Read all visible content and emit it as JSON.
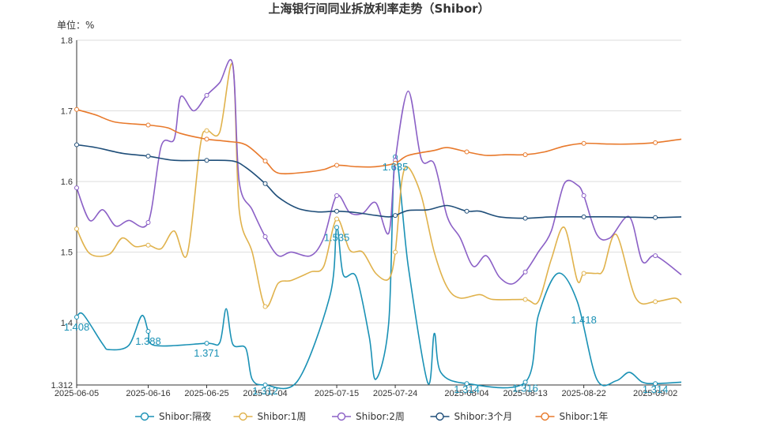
{
  "chart_data": {
    "type": "line",
    "title": "上海银行间同业拆放利率走势（Shibor）",
    "unit_label": "单位：%",
    "xlabel": "",
    "ylabel": "",
    "ylim": [
      1.312,
      1.8
    ],
    "y_ticks": [
      "1.312",
      "1.4",
      "1.5",
      "1.6",
      "1.7",
      "1.8"
    ],
    "x_range": [
      "2025-06-05",
      "2025-09-06"
    ],
    "x_ticks": [
      "2025-06-05",
      "2025-06-16",
      "2025-06-25",
      "2025-07-04",
      "2025-07-15",
      "2025-07-24",
      "2025-08-04",
      "2025-08-13",
      "2025-08-22",
      "2025-09-02"
    ],
    "grid": true,
    "smooth": true,
    "legend_position": "bottom",
    "series": [
      {
        "name": "Shibor:隔夜",
        "color": "#1a91b5",
        "points": [
          [
            "2025-06-05",
            1.408
          ],
          [
            "2025-06-06",
            1.412
          ],
          [
            "2025-06-09",
            1.37
          ],
          [
            "2025-06-10",
            1.362
          ],
          [
            "2025-06-13",
            1.368
          ],
          [
            "2025-06-15",
            1.41
          ],
          [
            "2025-06-16",
            1.388
          ],
          [
            "2025-06-17",
            1.368
          ],
          [
            "2025-06-25",
            1.371
          ],
          [
            "2025-06-27",
            1.372
          ],
          [
            "2025-06-28",
            1.42
          ],
          [
            "2025-06-29",
            1.37
          ],
          [
            "2025-07-01",
            1.364
          ],
          [
            "2025-07-02",
            1.32
          ],
          [
            "2025-07-04",
            1.312
          ],
          [
            "2025-07-09",
            1.318
          ],
          [
            "2025-07-14",
            1.44
          ],
          [
            "2025-07-15",
            1.535
          ],
          [
            "2025-07-16",
            1.468
          ],
          [
            "2025-07-18",
            1.465
          ],
          [
            "2025-07-20",
            1.38
          ],
          [
            "2025-07-21",
            1.32
          ],
          [
            "2025-07-23",
            1.4
          ],
          [
            "2025-07-24",
            1.635
          ],
          [
            "2025-07-26",
            1.48
          ],
          [
            "2025-07-29",
            1.315
          ],
          [
            "2025-07-30",
            1.385
          ],
          [
            "2025-07-31",
            1.33
          ],
          [
            "2025-08-04",
            1.314
          ],
          [
            "2025-08-13",
            1.316
          ],
          [
            "2025-08-15",
            1.41
          ],
          [
            "2025-08-18",
            1.47
          ],
          [
            "2025-08-21",
            1.43
          ],
          [
            "2025-08-24",
            1.32
          ],
          [
            "2025-08-27",
            1.318
          ],
          [
            "2025-08-29",
            1.33
          ],
          [
            "2025-08-31",
            1.316
          ],
          [
            "2025-09-02",
            1.314
          ],
          [
            "2025-09-06",
            1.316
          ]
        ],
        "data_labels": [
          {
            "x": "2025-06-05",
            "y": 1.408,
            "text": "1.408"
          },
          {
            "x": "2025-06-16",
            "y": 1.388,
            "text": "1.388"
          },
          {
            "x": "2025-06-25",
            "y": 1.371,
            "text": "1.371"
          },
          {
            "x": "2025-07-04",
            "y": 1.312,
            "text": "1.312"
          },
          {
            "x": "2025-07-15",
            "y": 1.535,
            "text": "1.535"
          },
          {
            "x": "2025-07-24",
            "y": 1.635,
            "text": "1.635"
          },
          {
            "x": "2025-08-04",
            "y": 1.314,
            "text": "1.314"
          },
          {
            "x": "2025-08-13",
            "y": 1.316,
            "text": "1.316"
          },
          {
            "x": "2025-08-22",
            "y": 1.418,
            "text": "1.418"
          },
          {
            "x": "2025-09-02",
            "y": 1.314,
            "text": "1.314"
          }
        ]
      },
      {
        "name": "Shibor:1周",
        "color": "#e0b24c",
        "points": [
          [
            "2025-06-05",
            1.533
          ],
          [
            "2025-06-07",
            1.498
          ],
          [
            "2025-06-10",
            1.497
          ],
          [
            "2025-06-12",
            1.52
          ],
          [
            "2025-06-14",
            1.508
          ],
          [
            "2025-06-16",
            1.51
          ],
          [
            "2025-06-18",
            1.505
          ],
          [
            "2025-06-20",
            1.53
          ],
          [
            "2025-06-22",
            1.497
          ],
          [
            "2025-06-24",
            1.65
          ],
          [
            "2025-06-25",
            1.672
          ],
          [
            "2025-06-27",
            1.67
          ],
          [
            "2025-06-29",
            1.765
          ],
          [
            "2025-06-30",
            1.56
          ],
          [
            "2025-07-02",
            1.5
          ],
          [
            "2025-07-04",
            1.423
          ],
          [
            "2025-07-06",
            1.456
          ],
          [
            "2025-07-08",
            1.46
          ],
          [
            "2025-07-11",
            1.472
          ],
          [
            "2025-07-13",
            1.48
          ],
          [
            "2025-07-15",
            1.547
          ],
          [
            "2025-07-17",
            1.503
          ],
          [
            "2025-07-19",
            1.5
          ],
          [
            "2025-07-21",
            1.47
          ],
          [
            "2025-07-23",
            1.462
          ],
          [
            "2025-07-24",
            1.5
          ],
          [
            "2025-07-25",
            1.6
          ],
          [
            "2025-07-26",
            1.62
          ],
          [
            "2025-07-28",
            1.58
          ],
          [
            "2025-07-30",
            1.5
          ],
          [
            "2025-08-01",
            1.45
          ],
          [
            "2025-08-03",
            1.435
          ],
          [
            "2025-08-06",
            1.44
          ],
          [
            "2025-08-08",
            1.433
          ],
          [
            "2025-08-13",
            1.433
          ],
          [
            "2025-08-15",
            1.43
          ],
          [
            "2025-08-17",
            1.49
          ],
          [
            "2025-08-19",
            1.535
          ],
          [
            "2025-08-21",
            1.46
          ],
          [
            "2025-08-22",
            1.47
          ],
          [
            "2025-08-24",
            1.47
          ],
          [
            "2025-08-25",
            1.475
          ],
          [
            "2025-08-27",
            1.525
          ],
          [
            "2025-08-30",
            1.435
          ],
          [
            "2025-09-02",
            1.43
          ],
          [
            "2025-09-05",
            1.435
          ],
          [
            "2025-09-06",
            1.428
          ]
        ]
      },
      {
        "name": "Shibor:2周",
        "color": "#8b60c6",
        "points": [
          [
            "2025-06-05",
            1.591
          ],
          [
            "2025-06-07",
            1.545
          ],
          [
            "2025-06-09",
            1.56
          ],
          [
            "2025-06-11",
            1.537
          ],
          [
            "2025-06-13",
            1.545
          ],
          [
            "2025-06-16",
            1.542
          ],
          [
            "2025-06-18",
            1.65
          ],
          [
            "2025-06-20",
            1.66
          ],
          [
            "2025-06-21",
            1.72
          ],
          [
            "2025-06-23",
            1.7
          ],
          [
            "2025-06-25",
            1.722
          ],
          [
            "2025-06-27",
            1.74
          ],
          [
            "2025-06-29",
            1.766
          ],
          [
            "2025-06-30",
            1.6
          ],
          [
            "2025-07-02",
            1.56
          ],
          [
            "2025-07-04",
            1.522
          ],
          [
            "2025-07-06",
            1.495
          ],
          [
            "2025-07-08",
            1.5
          ],
          [
            "2025-07-11",
            1.495
          ],
          [
            "2025-07-13",
            1.52
          ],
          [
            "2025-07-15",
            1.58
          ],
          [
            "2025-07-17",
            1.556
          ],
          [
            "2025-07-19",
            1.555
          ],
          [
            "2025-07-21",
            1.57
          ],
          [
            "2025-07-23",
            1.527
          ],
          [
            "2025-07-24",
            1.63
          ],
          [
            "2025-07-26",
            1.728
          ],
          [
            "2025-07-28",
            1.632
          ],
          [
            "2025-07-30",
            1.625
          ],
          [
            "2025-08-01",
            1.55
          ],
          [
            "2025-08-03",
            1.52
          ],
          [
            "2025-08-05",
            1.48
          ],
          [
            "2025-08-07",
            1.495
          ],
          [
            "2025-08-09",
            1.465
          ],
          [
            "2025-08-11",
            1.455
          ],
          [
            "2025-08-13",
            1.472
          ],
          [
            "2025-08-15",
            1.5
          ],
          [
            "2025-08-17",
            1.53
          ],
          [
            "2025-08-19",
            1.597
          ],
          [
            "2025-08-21",
            1.595
          ],
          [
            "2025-08-22",
            1.58
          ],
          [
            "2025-08-24",
            1.525
          ],
          [
            "2025-08-26",
            1.52
          ],
          [
            "2025-08-29",
            1.55
          ],
          [
            "2025-08-31",
            1.487
          ],
          [
            "2025-09-02",
            1.495
          ],
          [
            "2025-09-06",
            1.468
          ]
        ]
      },
      {
        "name": "Shibor:3个月",
        "color": "#1f4e79",
        "points": [
          [
            "2025-06-05",
            1.652
          ],
          [
            "2025-06-08",
            1.648
          ],
          [
            "2025-06-12",
            1.64
          ],
          [
            "2025-06-16",
            1.636
          ],
          [
            "2025-06-20",
            1.63
          ],
          [
            "2025-06-25",
            1.63
          ],
          [
            "2025-06-29",
            1.629
          ],
          [
            "2025-07-01",
            1.62
          ],
          [
            "2025-07-04",
            1.597
          ],
          [
            "2025-07-06",
            1.578
          ],
          [
            "2025-07-09",
            1.562
          ],
          [
            "2025-07-12",
            1.557
          ],
          [
            "2025-07-15",
            1.558
          ],
          [
            "2025-07-18",
            1.556
          ],
          [
            "2025-07-21",
            1.552
          ],
          [
            "2025-07-23",
            1.55
          ],
          [
            "2025-07-24",
            1.552
          ],
          [
            "2025-07-26",
            1.559
          ],
          [
            "2025-07-29",
            1.56
          ],
          [
            "2025-08-01",
            1.566
          ],
          [
            "2025-08-04",
            1.558
          ],
          [
            "2025-08-06",
            1.558
          ],
          [
            "2025-08-09",
            1.55
          ],
          [
            "2025-08-13",
            1.548
          ],
          [
            "2025-08-17",
            1.55
          ],
          [
            "2025-08-22",
            1.55
          ],
          [
            "2025-08-27",
            1.55
          ],
          [
            "2025-09-02",
            1.549
          ],
          [
            "2025-09-06",
            1.55
          ]
        ]
      },
      {
        "name": "Shibor:1年",
        "color": "#e8792b",
        "points": [
          [
            "2025-06-05",
            1.702
          ],
          [
            "2025-06-08",
            1.694
          ],
          [
            "2025-06-11",
            1.684
          ],
          [
            "2025-06-16",
            1.68
          ],
          [
            "2025-06-19",
            1.676
          ],
          [
            "2025-06-21",
            1.668
          ],
          [
            "2025-06-25",
            1.66
          ],
          [
            "2025-06-28",
            1.657
          ],
          [
            "2025-07-01",
            1.652
          ],
          [
            "2025-07-04",
            1.629
          ],
          [
            "2025-07-06",
            1.612
          ],
          [
            "2025-07-10",
            1.613
          ],
          [
            "2025-07-13",
            1.617
          ],
          [
            "2025-07-15",
            1.623
          ],
          [
            "2025-07-18",
            1.621
          ],
          [
            "2025-07-21",
            1.621
          ],
          [
            "2025-07-24",
            1.626
          ],
          [
            "2025-07-26",
            1.637
          ],
          [
            "2025-07-30",
            1.644
          ],
          [
            "2025-08-01",
            1.648
          ],
          [
            "2025-08-04",
            1.642
          ],
          [
            "2025-08-07",
            1.637
          ],
          [
            "2025-08-10",
            1.638
          ],
          [
            "2025-08-13",
            1.638
          ],
          [
            "2025-08-16",
            1.642
          ],
          [
            "2025-08-19",
            1.65
          ],
          [
            "2025-08-22",
            1.654
          ],
          [
            "2025-08-26",
            1.653
          ],
          [
            "2025-08-29",
            1.653
          ],
          [
            "2025-09-02",
            1.655
          ],
          [
            "2025-09-06",
            1.66
          ]
        ]
      }
    ]
  }
}
